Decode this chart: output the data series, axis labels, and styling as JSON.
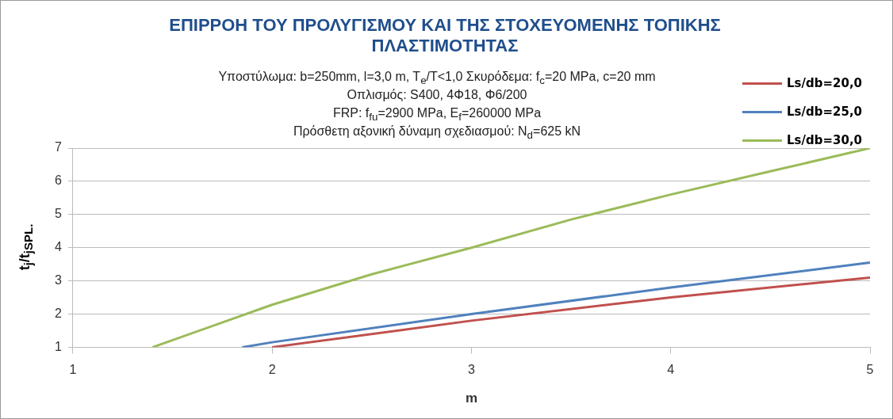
{
  "chart_data": {
    "type": "line",
    "title": "ΕΠΙΡΡΟΗ ΤΟΥ ΠΡΟΛΥΓΙΣΜΟΥ ΚΑΙ ΤΗΣ ΣΤΟΧΕΥΟΜΕΝΗΣ ΤΟΠΙΚΗΣ ΠΛΑΣΤΙΜΟΤΗΤΑΣ",
    "subtitle": "Υποστύλωμα: b=250mm, l=3,0 m, T$_{e}$/T<1,0 Σκυρόδεμα: f$_{c}$=20 MPa, c=20 mm\nΟπλισμός: S400, 4Φ18, Φ6/200\nFRP: f$_{fu}$=2900 MPa, E$_{f}$=260000 MPa\nΠρόσθετη αξονική δύναμη σχεδιασμού: N$_{d}$=625 kN",
    "xlabel": "m",
    "ylabel": "t$_{j}$/t$_{jSPL.}$",
    "series": [
      {
        "name": "Ls/db=20,0",
        "color": "#c0504d",
        "x": [
          2,
          3,
          4,
          5
        ],
        "values": [
          1,
          1.8,
          2.5,
          3.1
        ]
      },
      {
        "name": "Ls/db=25,0",
        "color": "#4f81bd",
        "x": [
          1.85,
          2,
          3,
          4,
          5
        ],
        "values": [
          1,
          1.15,
          2.0,
          2.8,
          3.55
        ]
      },
      {
        "name": "Ls/db=30,0",
        "color": "#9bbb59",
        "x": [
          1.4,
          2,
          2.5,
          3,
          3.5,
          4,
          4.5,
          5
        ],
        "values": [
          1,
          2.28,
          3.2,
          4.0,
          4.85,
          5.6,
          6.3,
          7.0
        ]
      }
    ],
    "xlim": [
      1,
      5
    ],
    "xticks": [
      1,
      2,
      3,
      4,
      5
    ],
    "ylim": [
      1,
      7
    ],
    "yticks": [
      1,
      2,
      3,
      4,
      5,
      6,
      7
    ],
    "grid": "y",
    "legend": "top right",
    "marker": "none",
    "line_style": "solid"
  }
}
